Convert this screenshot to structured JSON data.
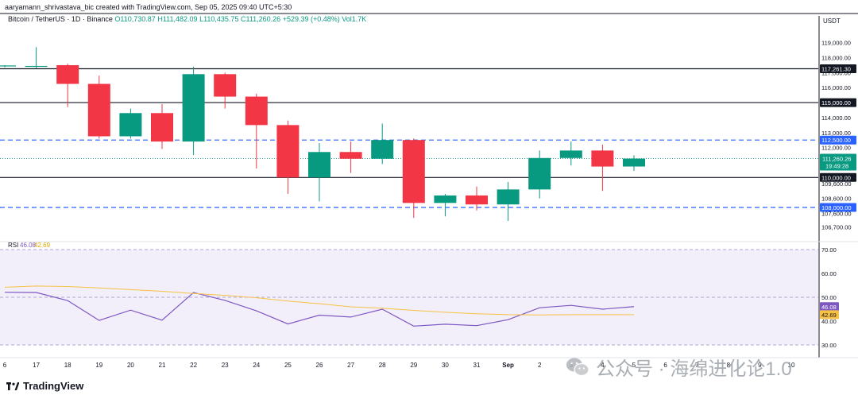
{
  "header": {
    "attribution": "aaryamann_shrivastava_bic created with TradingView.com, Sep 05, 2025 09:40 UTC+5:30"
  },
  "symbol": {
    "name": "Bitcoin / TetherUS · 1D · Binance",
    "ohlc_open": "O110,730.87",
    "ohlc_high": "H111,482.09",
    "ohlc_low": "L110,435.75",
    "ohlc_close": "C111,260.26",
    "change": "+529.39 (+0.48%)",
    "volume": "Vol1.7K"
  },
  "currency_label": "USDT",
  "branding": "TradingView",
  "watermark": {
    "icon": "wechat-icon",
    "text": "公众号 · 海绵进化论1.0"
  },
  "colors": {
    "up": "#089981",
    "down": "#f23645",
    "rsi": "#7e57c2",
    "rsi_ma": "#f7c143",
    "dashed": "#2962ff",
    "band_fill": "#f2effb"
  },
  "chart_data": [
    {
      "type": "candlestick",
      "title": "",
      "ylim": [
        106300,
        120100
      ],
      "y_ticks": [
        {
          "value": 119000,
          "label": "119,000.00"
        },
        {
          "value": 118000,
          "label": "118,000.00"
        },
        {
          "value": 117000,
          "label": "117,000.00"
        },
        {
          "value": 116000,
          "label": "116,000.00"
        },
        {
          "value": 115000,
          "label": "115,000.00"
        },
        {
          "value": 114000,
          "label": "114,000.00"
        },
        {
          "value": 113000,
          "label": "113,000.00"
        },
        {
          "value": 112000,
          "label": "112,000.00"
        },
        {
          "value": 111000,
          "label": "111,000.00"
        },
        {
          "value": 109600,
          "label": "109,600.00"
        },
        {
          "value": 108600,
          "label": "108,600.00"
        },
        {
          "value": 107600,
          "label": "107,600.00"
        },
        {
          "value": 106700,
          "label": "106,700.00"
        }
      ],
      "x_labels": [
        {
          "i": 0,
          "label": "6"
        },
        {
          "i": 1,
          "label": "17"
        },
        {
          "i": 2,
          "label": "18"
        },
        {
          "i": 3,
          "label": "19"
        },
        {
          "i": 4,
          "label": "20"
        },
        {
          "i": 5,
          "label": "21"
        },
        {
          "i": 6,
          "label": "22"
        },
        {
          "i": 7,
          "label": "23"
        },
        {
          "i": 8,
          "label": "24"
        },
        {
          "i": 9,
          "label": "25"
        },
        {
          "i": 10,
          "label": "26"
        },
        {
          "i": 11,
          "label": "27"
        },
        {
          "i": 12,
          "label": "28"
        },
        {
          "i": 13,
          "label": "29"
        },
        {
          "i": 14,
          "label": "30"
        },
        {
          "i": 15,
          "label": "31"
        },
        {
          "i": 16,
          "label": "Sep"
        },
        {
          "i": 17,
          "label": "2"
        },
        {
          "i": 18,
          "label": "3"
        },
        {
          "i": 19,
          "label": "4"
        },
        {
          "i": 20,
          "label": "5"
        },
        {
          "i": 21,
          "label": "6"
        },
        {
          "i": 22,
          "label": "7"
        },
        {
          "i": 23,
          "label": "8"
        },
        {
          "i": 24,
          "label": "9"
        },
        {
          "i": 25,
          "label": "10"
        }
      ],
      "candles": [
        {
          "i": 0,
          "o": 117430,
          "h": 117500,
          "l": 117350,
          "c": 117480
        },
        {
          "i": 1,
          "o": 117400,
          "h": 118700,
          "l": 117300,
          "c": 117450
        },
        {
          "i": 2,
          "o": 117500,
          "h": 117600,
          "l": 114700,
          "c": 116250
        },
        {
          "i": 3,
          "o": 116250,
          "h": 116800,
          "l": 112600,
          "c": 112750
        },
        {
          "i": 4,
          "o": 112750,
          "h": 114600,
          "l": 112600,
          "c": 114300
        },
        {
          "i": 5,
          "o": 114300,
          "h": 114900,
          "l": 111900,
          "c": 112400
        },
        {
          "i": 6,
          "o": 112400,
          "h": 117400,
          "l": 111500,
          "c": 116900
        },
        {
          "i": 7,
          "o": 116900,
          "h": 117000,
          "l": 114600,
          "c": 115400
        },
        {
          "i": 8,
          "o": 115400,
          "h": 115600,
          "l": 110600,
          "c": 113500
        },
        {
          "i": 9,
          "o": 113500,
          "h": 113800,
          "l": 108900,
          "c": 110000
        },
        {
          "i": 10,
          "o": 110000,
          "h": 112300,
          "l": 108400,
          "c": 111700
        },
        {
          "i": 11,
          "o": 111700,
          "h": 112400,
          "l": 110300,
          "c": 111250
        },
        {
          "i": 12,
          "o": 111250,
          "h": 113600,
          "l": 110900,
          "c": 112500
        },
        {
          "i": 13,
          "o": 112500,
          "h": 112600,
          "l": 107300,
          "c": 108300
        },
        {
          "i": 14,
          "o": 108300,
          "h": 108900,
          "l": 107400,
          "c": 108800
        },
        {
          "i": 15,
          "o": 108800,
          "h": 109400,
          "l": 107800,
          "c": 108200
        },
        {
          "i": 16,
          "o": 108200,
          "h": 109700,
          "l": 107100,
          "c": 109200
        },
        {
          "i": 17,
          "o": 109200,
          "h": 111800,
          "l": 108600,
          "c": 111300
        },
        {
          "i": 18,
          "o": 111300,
          "h": 112400,
          "l": 110800,
          "c": 111800
        },
        {
          "i": 19,
          "o": 111800,
          "h": 112200,
          "l": 109100,
          "c": 110730
        },
        {
          "i": 20,
          "o": 110730.87,
          "h": 111482.09,
          "l": 110435.75,
          "c": 111260.26
        }
      ],
      "levels": [
        {
          "value": 117261.3,
          "label": "117,261.30",
          "style": "solid"
        },
        {
          "value": 115000,
          "label": "115,000.00",
          "style": "solid"
        },
        {
          "value": 112500,
          "label": "112,500.00",
          "style": "dashed"
        },
        {
          "value": 110000,
          "label": "110,000.00",
          "style": "solid"
        },
        {
          "value": 108000,
          "label": "108,000.00",
          "style": "dashed"
        }
      ],
      "current_price": {
        "value": 111260.26,
        "label": "111,260.26",
        "countdown": "19:49:28"
      }
    },
    {
      "type": "line",
      "title": "RSI",
      "legend": {
        "rsi_value": "46.08",
        "ma_value": "42.69"
      },
      "ylim": [
        26,
        72
      ],
      "y_ticks": [
        {
          "value": 70,
          "label": "70.00"
        },
        {
          "value": 60,
          "label": "60.00"
        },
        {
          "value": 50,
          "label": "50.00"
        },
        {
          "value": 40,
          "label": "40.00"
        },
        {
          "value": 30,
          "label": "30.00"
        }
      ],
      "band": [
        30,
        70
      ],
      "series": [
        {
          "values": [
            52.1,
            52.0,
            48.6,
            40.3,
            44.6,
            40.4,
            52.0,
            48.7,
            44.3,
            38.8,
            42.5,
            41.7,
            45.0,
            37.9,
            38.7,
            38.1,
            40.6,
            45.6,
            46.6,
            45.0,
            46.08
          ]
        },
        {
          "values": [
            54.2,
            54.7,
            54.5,
            53.9,
            53.2,
            52.5,
            51.6,
            50.8,
            49.8,
            48.4,
            47.3,
            46.0,
            45.4,
            44.5,
            43.7,
            43.1,
            42.7,
            42.6,
            42.7,
            42.7,
            42.69
          ]
        }
      ],
      "last_labels": [
        {
          "value": 46.08,
          "label": "46.08",
          "series": 0
        },
        {
          "value": 42.69,
          "label": "42.69",
          "series": 1
        }
      ]
    }
  ]
}
